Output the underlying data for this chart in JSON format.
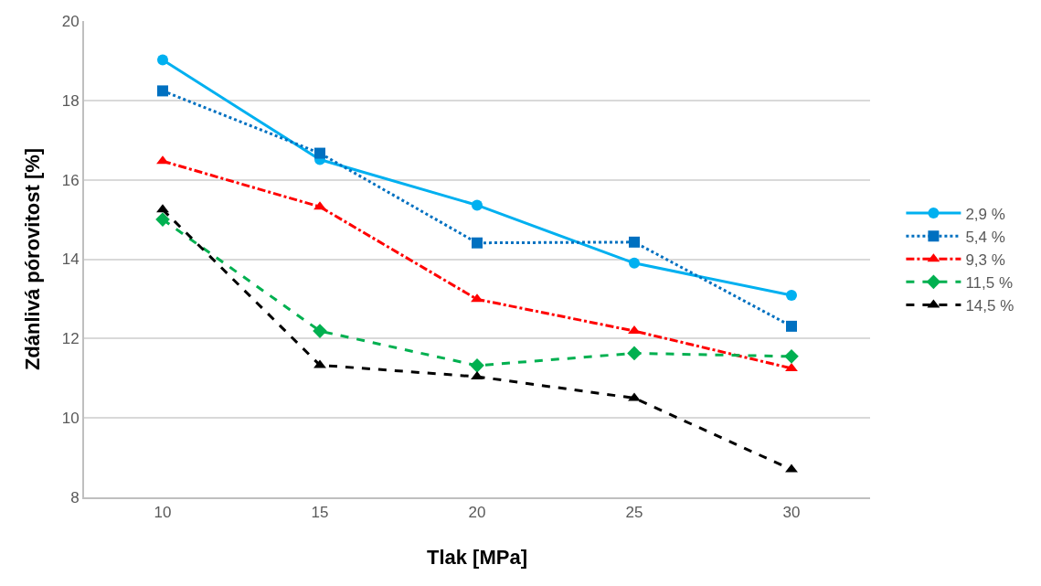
{
  "chart_data": {
    "type": "line",
    "xlabel": "Tlak [MPa]",
    "ylabel": "Zdánlivá pórovitost [%]",
    "x": [
      10,
      15,
      20,
      25,
      30
    ],
    "xlim": [
      7.5,
      32.5
    ],
    "xticks": [
      10,
      15,
      20,
      25,
      30
    ],
    "ylim": [
      8,
      20
    ],
    "yticks": [
      8,
      10,
      12,
      14,
      16,
      18,
      20
    ],
    "grid": "y",
    "legend": "right",
    "series": [
      {
        "name": "2,9 %",
        "color": "#00b0f0",
        "marker": "circle",
        "line_style": "solid",
        "values": [
          19.02,
          16.51,
          15.36,
          13.9,
          13.09
        ]
      },
      {
        "name": "5,4 %",
        "color": "#0070c0",
        "marker": "square",
        "line_style": "dotted",
        "values": [
          18.24,
          16.67,
          14.41,
          14.43,
          12.31
        ]
      },
      {
        "name": "9,3 %",
        "color": "#ff0000",
        "marker": "triangle",
        "line_style": "dashdot",
        "values": [
          16.47,
          15.32,
          12.99,
          12.19,
          11.25
        ]
      },
      {
        "name": "11,5 %",
        "color": "#00b050",
        "marker": "diamond",
        "line_style": "dashed",
        "values": [
          15.0,
          12.19,
          11.32,
          11.63,
          11.55
        ]
      },
      {
        "name": "14,5 %",
        "color": "#000000",
        "marker": "triangle",
        "line_style": "dashed",
        "values": [
          15.25,
          11.33,
          11.04,
          10.5,
          8.7
        ]
      }
    ]
  }
}
